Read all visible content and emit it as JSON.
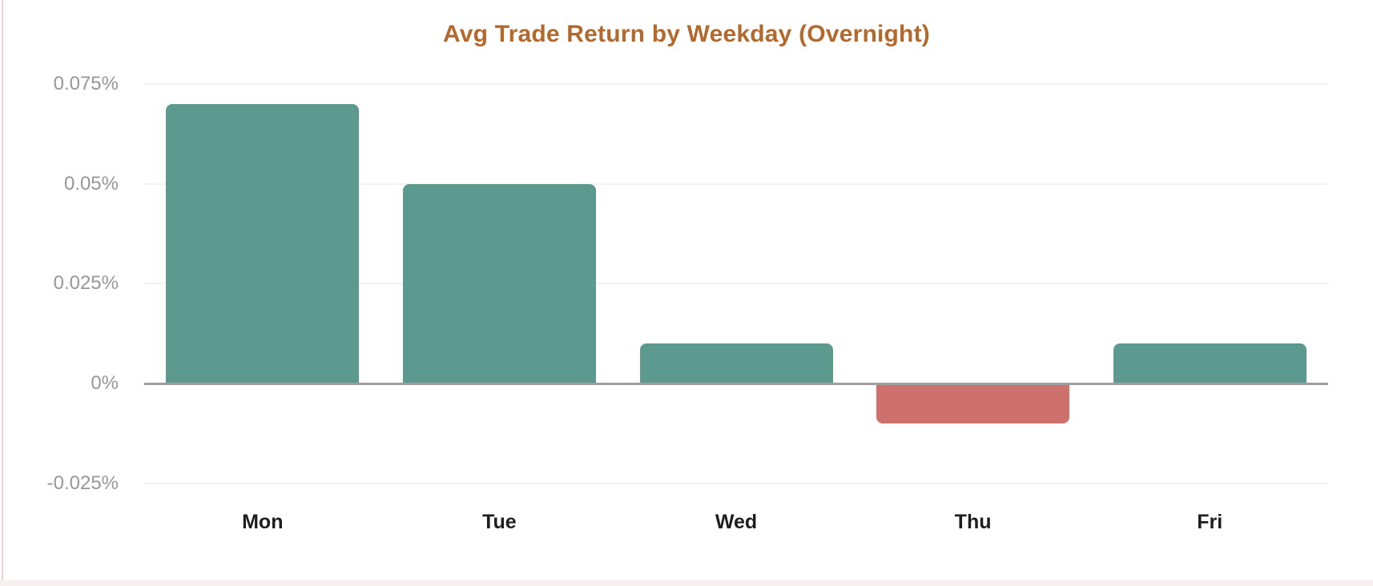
{
  "page": {
    "left_border_color": "#e8d6d6",
    "bottom_band_color": "#f6f1f0",
    "background": "#ffffff"
  },
  "chart_data": {
    "type": "bar",
    "title": "Avg Trade Return by Weekday (Overnight)",
    "categories": [
      "Mon",
      "Tue",
      "Wed",
      "Thu",
      "Fri"
    ],
    "values_pct": [
      0.07,
      0.05,
      0.01,
      -0.01,
      0.01
    ],
    "xlabel": "",
    "ylabel": "",
    "y_ticks_pct": [
      0.075,
      0.05,
      0.025,
      0,
      -0.025
    ],
    "y_tick_labels": [
      "0.075%",
      "0.05%",
      "0.025%",
      "0%",
      "-0.025%"
    ],
    "ylim_pct": [
      -0.025,
      0.075
    ],
    "grid": true,
    "legend": false,
    "zero_baseline": true,
    "colors": {
      "title": "#b3682c",
      "positive_bar": "#5c9a90",
      "negative_bar": "#ce706b",
      "gridline": "#f1f1f1",
      "zero_line": "#9e9e9e",
      "y_tick_label": "#979797",
      "x_category_label": "#1e1e1e"
    }
  }
}
